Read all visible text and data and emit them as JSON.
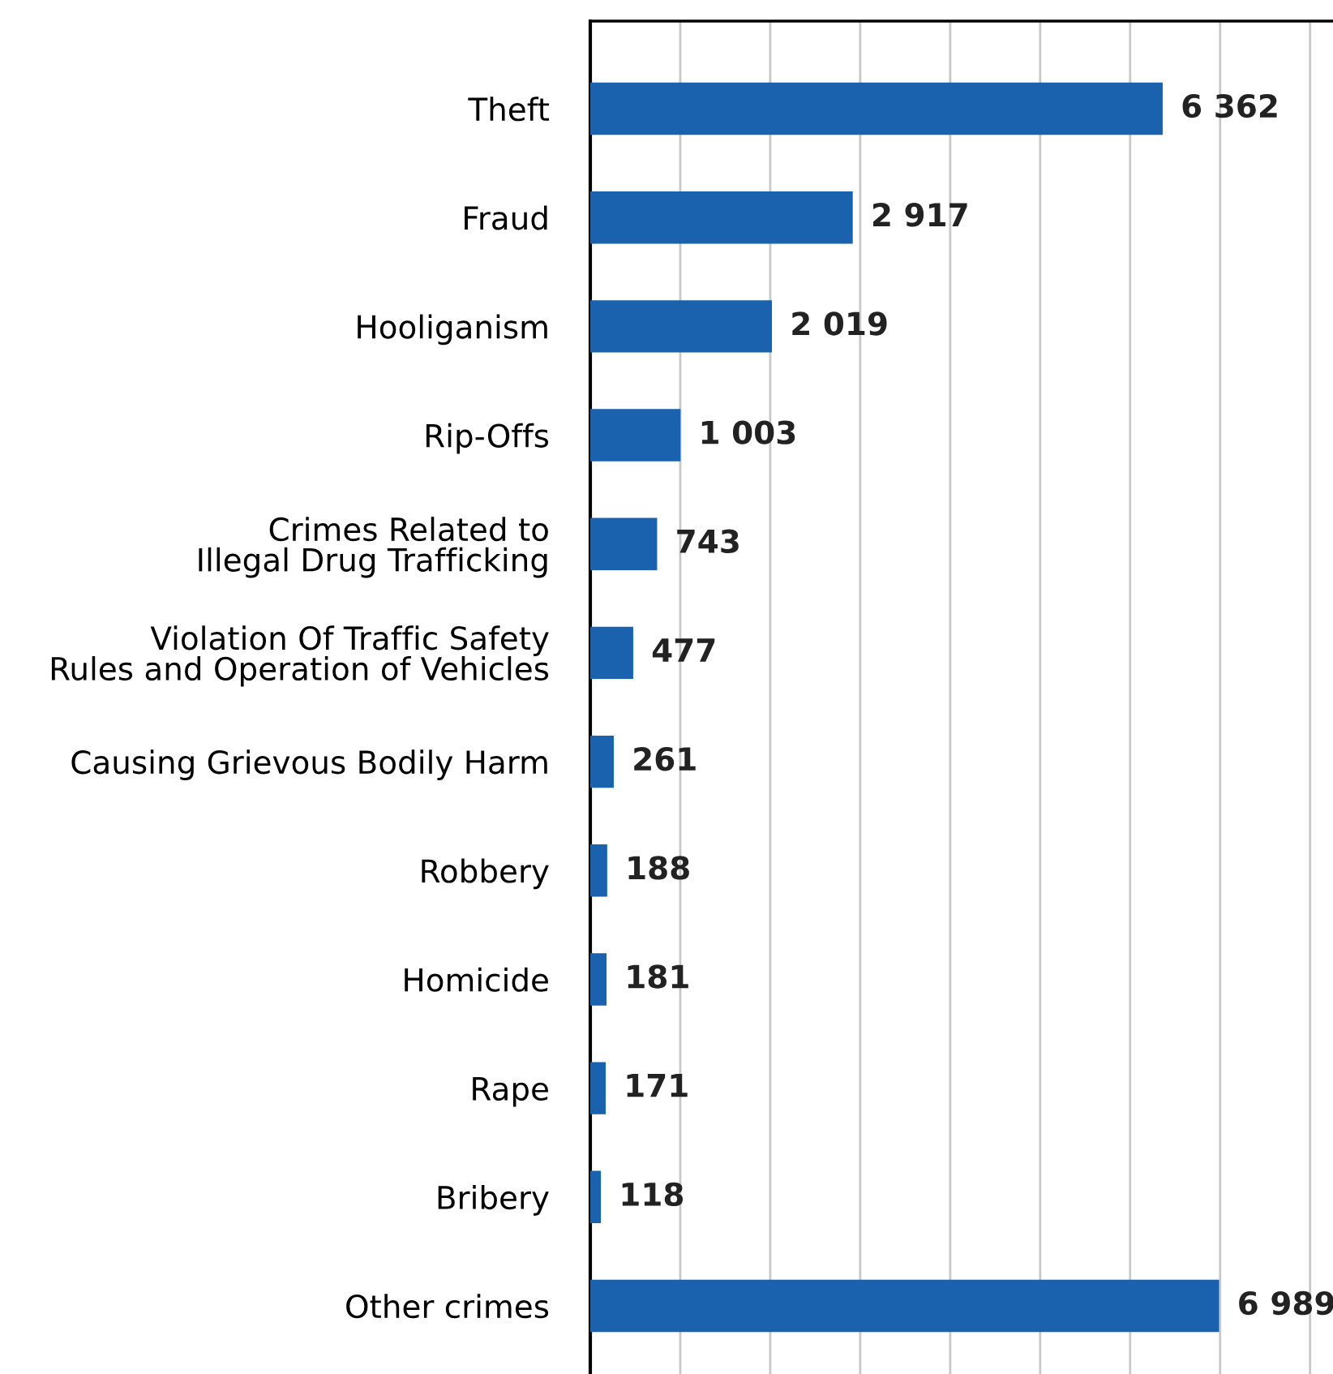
{
  "chart_data": {
    "type": "bar",
    "orientation": "horizontal",
    "categories": [
      "Theft",
      "Fraud",
      "Hooliganism",
      "Rip-Offs",
      "Crimes Related to\nIllegal Drug Trafficking",
      "Violation Of Traffic Safety\nRules and Operation of Vehicles",
      "Causing Grievous Bodily Harm",
      "Robbery",
      "Homicide",
      "Rape",
      "Bribery",
      "Other crimes"
    ],
    "values": [
      6362,
      2917,
      2019,
      1003,
      743,
      477,
      261,
      188,
      181,
      171,
      118,
      6989
    ],
    "value_labels": [
      "6 362",
      "2 917",
      "2 019",
      "1 003",
      "743",
      "477",
      "261",
      "188",
      "181",
      "171",
      "118",
      "6 989"
    ],
    "color": "#1a62ae",
    "xlim": [
      0,
      8240
    ],
    "xticks": [
      {
        "value": 0,
        "label": null
      },
      {
        "value": 1000,
        "label": null
      },
      {
        "value": 2000,
        "label": null
      },
      {
        "value": 3000,
        "label": null
      },
      {
        "value": 4000,
        "label": null
      },
      {
        "value": 5000,
        "label": null
      },
      {
        "value": 6000,
        "label": null
      },
      {
        "value": 7000,
        "label": null
      },
      {
        "value": 8000,
        "label": null
      }
    ],
    "grid": "x",
    "tick_labels": "y"
  }
}
